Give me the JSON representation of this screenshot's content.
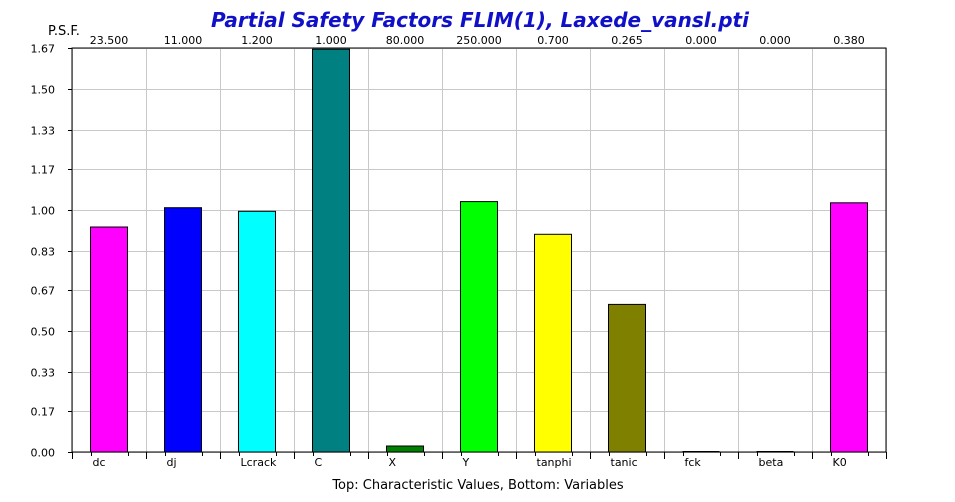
{
  "chart_data": {
    "type": "bar",
    "title": "Partial Safety Factors FLIM(1), Laxede_vansl.pti",
    "ylabel": "P.S.F.",
    "xlabel": "Top: Characteristic Values, Bottom: Variables",
    "ylim": [
      0,
      1.67
    ],
    "yticks": [
      "0.00",
      "0.17",
      "0.33",
      "0.50",
      "0.67",
      "0.83",
      "1.00",
      "1.17",
      "1.33",
      "1.50",
      "1.67"
    ],
    "grid": true,
    "categories": [
      "dc",
      "dj",
      "Lcrack",
      "C",
      "X",
      "Y",
      "tanphi",
      "tanic",
      "fck",
      "beta",
      "K0"
    ],
    "top_labels": [
      "23.500",
      "11.000",
      "1.200",
      "1.000",
      "80.000",
      "250.000",
      "0.700",
      "0.265",
      "0.000",
      "0.000",
      "0.380"
    ],
    "values": [
      0.93,
      1.01,
      0.995,
      1.665,
      0.025,
      1.035,
      0.9,
      0.61,
      0,
      0,
      1.03
    ],
    "colors": [
      "#ff00ff",
      "#0000ff",
      "#00ffff",
      "#008080",
      "#008000",
      "#00ff00",
      "#ffff00",
      "#808000",
      "#cccccc",
      "#cccccc",
      "#ff00ff"
    ]
  }
}
